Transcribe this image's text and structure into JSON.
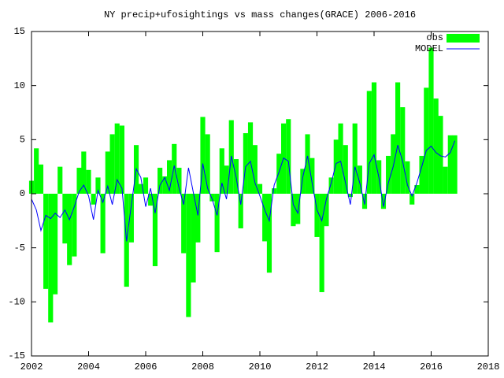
{
  "chart_data": {
    "type": "bar",
    "title": "NY precip+ufosightings vs mass changes(GRACE) 2006-2016",
    "x": [
      2002,
      2002.17,
      2002.33,
      2002.5,
      2002.67,
      2002.83,
      2003,
      2003.17,
      2003.33,
      2003.5,
      2003.67,
      2003.83,
      2004,
      2004.17,
      2004.33,
      2004.5,
      2004.67,
      2004.83,
      2005,
      2005.17,
      2005.33,
      2005.5,
      2005.67,
      2005.83,
      2006,
      2006.17,
      2006.33,
      2006.5,
      2006.67,
      2006.83,
      2007,
      2007.17,
      2007.33,
      2007.5,
      2007.67,
      2007.83,
      2008,
      2008.17,
      2008.33,
      2008.5,
      2008.67,
      2008.83,
      2009,
      2009.17,
      2009.33,
      2009.5,
      2009.67,
      2009.83,
      2010,
      2010.17,
      2010.33,
      2010.5,
      2010.67,
      2010.83,
      2011,
      2011.17,
      2011.33,
      2011.5,
      2011.67,
      2011.83,
      2012,
      2012.17,
      2012.33,
      2012.5,
      2012.67,
      2012.83,
      2013,
      2013.17,
      2013.33,
      2013.5,
      2013.67,
      2013.83,
      2014,
      2014.17,
      2014.33,
      2014.5,
      2014.67,
      2014.83,
      2015,
      2015.17,
      2015.33,
      2015.5,
      2015.67,
      2015.83,
      2016,
      2016.17,
      2016.33,
      2016.5,
      2016.67,
      2016.83
    ],
    "series": [
      {
        "name": "obs",
        "type": "bar",
        "color": "#00ff00",
        "values": [
          1.2,
          4.2,
          2.7,
          -8.8,
          -11.9,
          -9.3,
          2.5,
          -4.6,
          -6.6,
          -5.8,
          2.4,
          3.9,
          2.2,
          -1.0,
          1.5,
          -5.5,
          3.9,
          5.5,
          6.5,
          6.3,
          -8.6,
          -4.5,
          4.5,
          0.9,
          1.5,
          -1.1,
          -6.7,
          2.4,
          1.6,
          3.1,
          4.6,
          2.4,
          -5.5,
          -11.4,
          -8.2,
          -4.5,
          7.1,
          5.5,
          -0.7,
          -5.4,
          4.2,
          2.6,
          6.8,
          3.2,
          -3.2,
          5.6,
          6.6,
          4.5,
          0.9,
          -4.4,
          -7.3,
          0.5,
          3.7,
          6.5,
          6.9,
          -3.0,
          -2.8,
          2.3,
          5.5,
          3.3,
          -4.0,
          -9.1,
          -3.0,
          1.5,
          5.0,
          6.5,
          4.5,
          -0.3,
          6.5,
          2.6,
          -1.4,
          9.5,
          10.3,
          3.1,
          -1.4,
          3.5,
          5.5,
          10.3,
          8.0,
          3.0,
          -1.0,
          0.8,
          3.5,
          9.8,
          13.5,
          8.8,
          7.2,
          2.5,
          5.4,
          5.4
        ]
      },
      {
        "name": "MODEL",
        "type": "line",
        "color": "#0000ff",
        "values": [
          -0.5,
          -1.5,
          -3.4,
          -2.0,
          -2.3,
          -1.8,
          -2.2,
          -1.5,
          -2.4,
          -1.2,
          0.2,
          0.8,
          -0.2,
          -2.4,
          0.3,
          -0.8,
          0.7,
          -1.0,
          1.3,
          0.5,
          -4.4,
          -1.0,
          2.3,
          1.5,
          -1.2,
          0.5,
          -1.8,
          0.8,
          1.5,
          0.3,
          2.6,
          0.5,
          -1.0,
          2.4,
          0.1,
          -2.0,
          2.8,
          0.5,
          -0.5,
          -2.0,
          1.0,
          -0.5,
          3.5,
          1.5,
          -1.0,
          2.5,
          3.0,
          1.0,
          -0.2,
          -1.5,
          -2.5,
          0.8,
          2.0,
          3.3,
          3.0,
          -1.0,
          -1.8,
          1.5,
          3.5,
          1.0,
          -1.5,
          -2.5,
          -0.5,
          1.0,
          2.8,
          3.0,
          1.0,
          -1.0,
          2.5,
          1.0,
          -1.0,
          2.8,
          3.6,
          1.5,
          -1.2,
          1.0,
          2.5,
          4.5,
          3.0,
          0.8,
          -0.2,
          1.0,
          2.5,
          4.0,
          4.4,
          3.8,
          3.5,
          3.4,
          3.8,
          4.9
        ]
      }
    ],
    "xlim": [
      2002,
      2018
    ],
    "xticks": [
      2002,
      2004,
      2006,
      2008,
      2010,
      2012,
      2014,
      2016,
      2018
    ],
    "ylim": [
      -15,
      15
    ],
    "yticks": [
      -15,
      -10,
      -5,
      0,
      5,
      10,
      15
    ],
    "legend": "top-right"
  }
}
